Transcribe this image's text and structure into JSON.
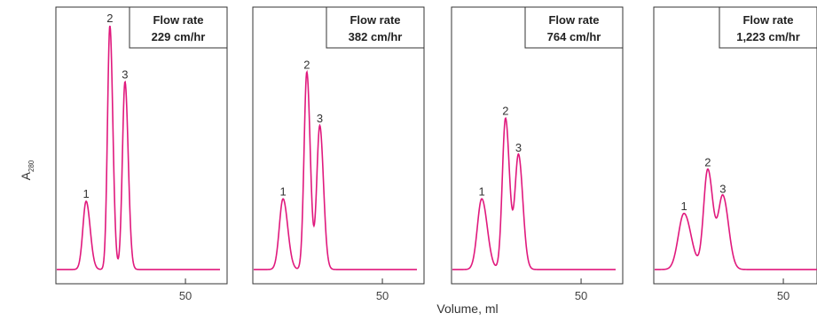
{
  "chart_data": {
    "type": "line",
    "ylabel_main": "A",
    "ylabel_sub": "280",
    "xlabel": "Volume, ml",
    "line_color": "#e0197d",
    "grid": false,
    "xlim": [
      20,
      58
    ],
    "ylim": [
      0,
      1
    ],
    "xticks": [
      50
    ],
    "panels": [
      {
        "box_title_line1": "Flow rate",
        "box_title_line2": "229 cm/hr",
        "peaks": [
          {
            "label": "1",
            "x": 27.0,
            "y": 0.28
          },
          {
            "label": "2",
            "x": 32.5,
            "y": 1.0
          },
          {
            "label": "3",
            "x": 36.0,
            "y": 0.77
          }
        ]
      },
      {
        "box_title_line1": "Flow rate",
        "box_title_line2": "382 cm/hr",
        "peaks": [
          {
            "label": "1",
            "x": 27.0,
            "y": 0.29
          },
          {
            "label": "2",
            "x": 32.5,
            "y": 0.81
          },
          {
            "label": "3",
            "x": 35.5,
            "y": 0.59
          }
        ]
      },
      {
        "box_title_line1": "Flow rate",
        "box_title_line2": "764 cm/hr",
        "peaks": [
          {
            "label": "1",
            "x": 27.0,
            "y": 0.29
          },
          {
            "label": "2",
            "x": 32.5,
            "y": 0.62
          },
          {
            "label": "3",
            "x": 35.5,
            "y": 0.47
          }
        ]
      },
      {
        "box_title_line1": "Flow rate",
        "box_title_line2": "1,223 cm/hr",
        "peaks": [
          {
            "label": "1",
            "x": 27.0,
            "y": 0.23
          },
          {
            "label": "2",
            "x": 32.5,
            "y": 0.41
          },
          {
            "label": "3",
            "x": 36.0,
            "y": 0.3
          }
        ]
      }
    ]
  }
}
